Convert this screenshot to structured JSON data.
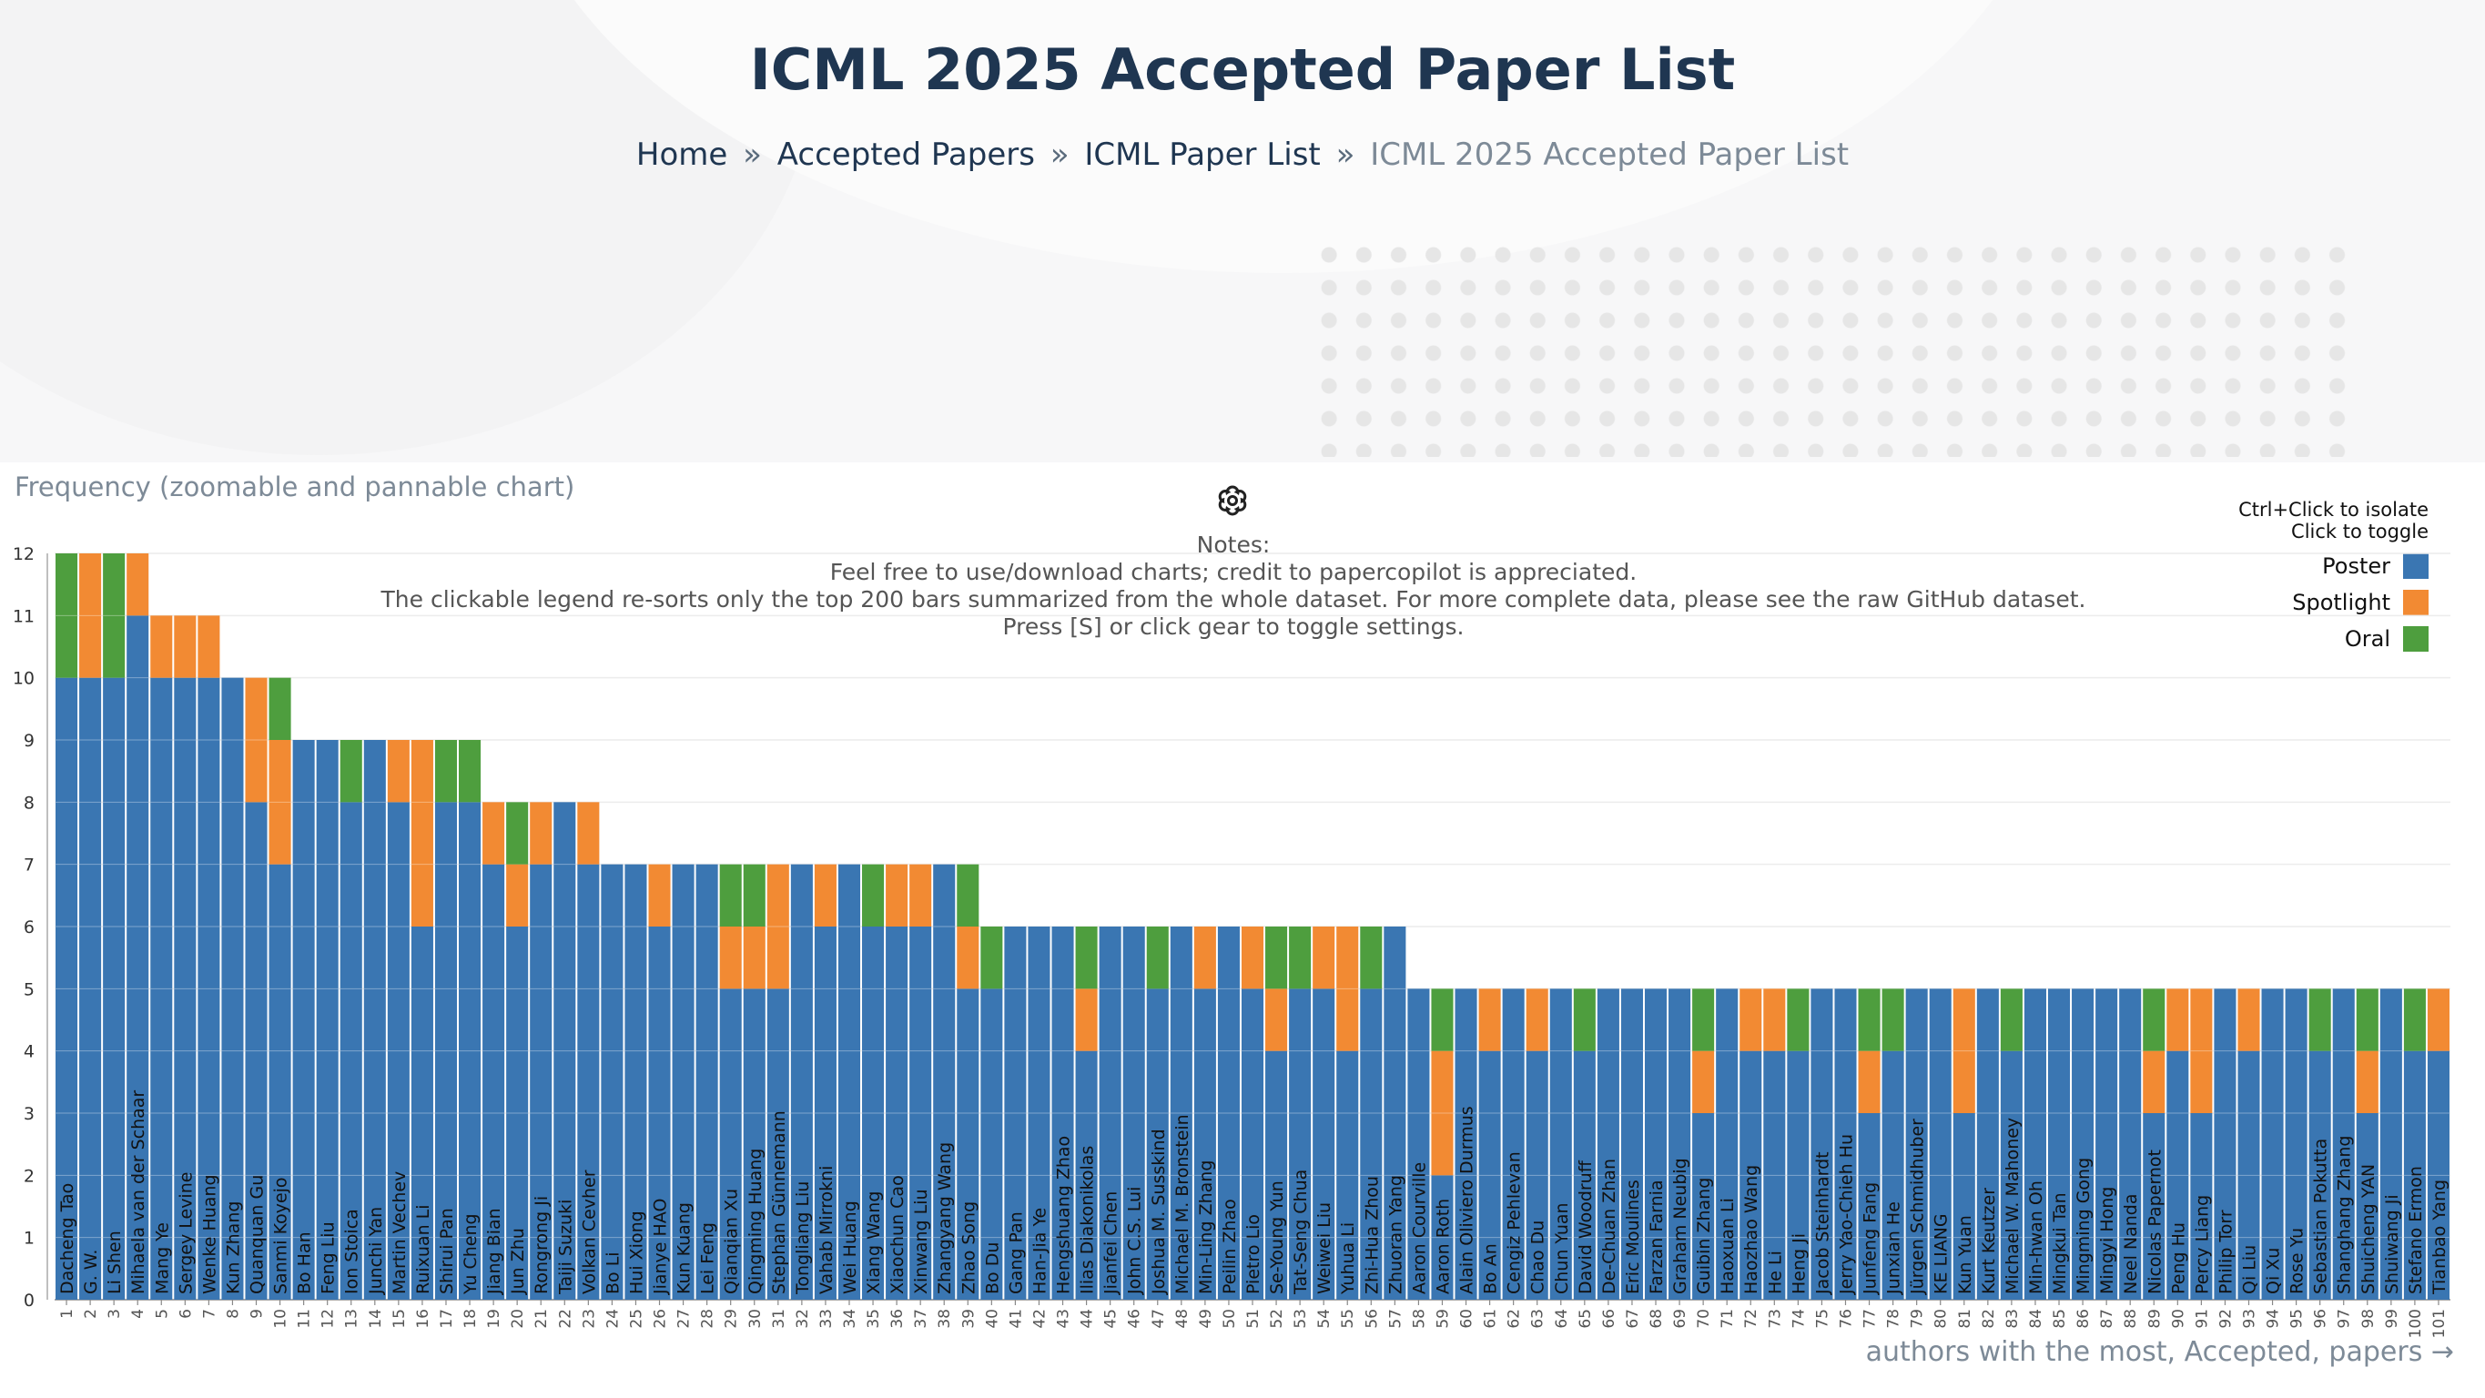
{
  "page": {
    "title": "ICML 2025 Accepted Paper List",
    "breadcrumb": [
      "Home",
      "Accepted Papers",
      "ICML Paper List"
    ],
    "breadcrumb_separator": "»",
    "breadcrumb_current": "ICML 2025 Accepted Paper List",
    "chart_caption": "Frequency (zoomable and pannable chart)",
    "settings_icon": "gear-icon",
    "notes": [
      "Notes:",
      "Feel free to use/download charts; credit to papercopilot is appreciated.",
      "The clickable legend re-sorts only the top 200 bars summarized from the whole dataset. For more complete data, please see the raw GitHub dataset.",
      "Press [S] or click gear to toggle settings."
    ],
    "legend_hint": [
      "Ctrl+Click to isolate",
      "Click to toggle"
    ],
    "x_axis_label": "authors with the most, Accepted, papers →"
  },
  "chart_data": {
    "type": "bar",
    "stacked": true,
    "ylim": [
      0,
      12
    ],
    "yticks": [
      0,
      1,
      2,
      3,
      4,
      5,
      6,
      7,
      8,
      9,
      10,
      11,
      12
    ],
    "ylabel": "Frequency",
    "grid": true,
    "legend_position": "top-right",
    "series": [
      {
        "name": "Poster",
        "color": "#3a76b2"
      },
      {
        "name": "Spotlight",
        "color": "#f28a33"
      },
      {
        "name": "Oral",
        "color": "#4e9e3e"
      }
    ],
    "bars": [
      {
        "rank": "1",
        "name": "Dacheng Tao",
        "poster": 10,
        "spotlight": 0,
        "oral": 2
      },
      {
        "rank": "2",
        "name": "G. W.",
        "poster": 10,
        "spotlight": 2,
        "oral": 0
      },
      {
        "rank": "3",
        "name": "Li Shen",
        "poster": 10,
        "spotlight": 0,
        "oral": 2
      },
      {
        "rank": "4",
        "name": "Mihaela van der Schaar",
        "poster": 11,
        "spotlight": 1,
        "oral": 0
      },
      {
        "rank": "5",
        "name": "Mang Ye",
        "poster": 10,
        "spotlight": 1,
        "oral": 0
      },
      {
        "rank": "6",
        "name": "Sergey Levine",
        "poster": 10,
        "spotlight": 1,
        "oral": 0
      },
      {
        "rank": "7",
        "name": "Wenke Huang",
        "poster": 10,
        "spotlight": 1,
        "oral": 0
      },
      {
        "rank": "8",
        "name": "Kun Zhang",
        "poster": 10,
        "spotlight": 0,
        "oral": 0
      },
      {
        "rank": "9",
        "name": "Quanquan Gu",
        "poster": 8,
        "spotlight": 2,
        "oral": 0
      },
      {
        "rank": "10",
        "name": "Sanmi Koyejo",
        "poster": 7,
        "spotlight": 2,
        "oral": 1
      },
      {
        "rank": "11",
        "name": "Bo Han",
        "poster": 9,
        "spotlight": 0,
        "oral": 0
      },
      {
        "rank": "12",
        "name": "Feng Liu",
        "poster": 9,
        "spotlight": 0,
        "oral": 0
      },
      {
        "rank": "13",
        "name": "Ion Stoica",
        "poster": 8,
        "spotlight": 0,
        "oral": 1
      },
      {
        "rank": "14",
        "name": "Junchi Yan",
        "poster": 9,
        "spotlight": 0,
        "oral": 0
      },
      {
        "rank": "15",
        "name": "Martin Vechev",
        "poster": 8,
        "spotlight": 1,
        "oral": 0
      },
      {
        "rank": "16",
        "name": "Ruixuan Li",
        "poster": 6,
        "spotlight": 3,
        "oral": 0
      },
      {
        "rank": "17",
        "name": "Shirui Pan",
        "poster": 8,
        "spotlight": 0,
        "oral": 1
      },
      {
        "rank": "18",
        "name": "Yu Cheng",
        "poster": 8,
        "spotlight": 0,
        "oral": 1
      },
      {
        "rank": "19",
        "name": "Jiang Bian",
        "poster": 7,
        "spotlight": 1,
        "oral": 0
      },
      {
        "rank": "20",
        "name": "Jun Zhu",
        "poster": 6,
        "spotlight": 1,
        "oral": 1
      },
      {
        "rank": "21",
        "name": "Rongrong Ji",
        "poster": 7,
        "spotlight": 1,
        "oral": 0
      },
      {
        "rank": "22",
        "name": "Taiji Suzuki",
        "poster": 8,
        "spotlight": 0,
        "oral": 0
      },
      {
        "rank": "23",
        "name": "Volkan Cevher",
        "poster": 7,
        "spotlight": 1,
        "oral": 0
      },
      {
        "rank": "24",
        "name": "Bo Li",
        "poster": 7,
        "spotlight": 0,
        "oral": 0
      },
      {
        "rank": "25",
        "name": "Hui Xiong",
        "poster": 7,
        "spotlight": 0,
        "oral": 0
      },
      {
        "rank": "26",
        "name": "Jianye HAO",
        "poster": 6,
        "spotlight": 1,
        "oral": 0
      },
      {
        "rank": "27",
        "name": "Kun Kuang",
        "poster": 7,
        "spotlight": 0,
        "oral": 0
      },
      {
        "rank": "28",
        "name": "Lei Feng",
        "poster": 7,
        "spotlight": 0,
        "oral": 0
      },
      {
        "rank": "29",
        "name": "Qianqian Xu",
        "poster": 5,
        "spotlight": 1,
        "oral": 1
      },
      {
        "rank": "30",
        "name": "Qingming Huang",
        "poster": 5,
        "spotlight": 1,
        "oral": 1
      },
      {
        "rank": "31",
        "name": "Stephan Günnemann",
        "poster": 5,
        "spotlight": 2,
        "oral": 0
      },
      {
        "rank": "32",
        "name": "Tongliang Liu",
        "poster": 7,
        "spotlight": 0,
        "oral": 0
      },
      {
        "rank": "33",
        "name": "Vahab Mirrokni",
        "poster": 6,
        "spotlight": 1,
        "oral": 0
      },
      {
        "rank": "34",
        "name": "Wei Huang",
        "poster": 7,
        "spotlight": 0,
        "oral": 0
      },
      {
        "rank": "35",
        "name": "Xiang Wang",
        "poster": 6,
        "spotlight": 0,
        "oral": 1
      },
      {
        "rank": "36",
        "name": "Xiaochun Cao",
        "poster": 6,
        "spotlight": 1,
        "oral": 0
      },
      {
        "rank": "37",
        "name": "Xinwang Liu",
        "poster": 6,
        "spotlight": 1,
        "oral": 0
      },
      {
        "rank": "38",
        "name": "Zhangyang Wang",
        "poster": 7,
        "spotlight": 0,
        "oral": 0
      },
      {
        "rank": "39",
        "name": "Zhao Song",
        "poster": 5,
        "spotlight": 1,
        "oral": 1
      },
      {
        "rank": "40",
        "name": "Bo Du",
        "poster": 5,
        "spotlight": 0,
        "oral": 1
      },
      {
        "rank": "41",
        "name": "Gang Pan",
        "poster": 6,
        "spotlight": 0,
        "oral": 0
      },
      {
        "rank": "42",
        "name": "Han-Jia Ye",
        "poster": 6,
        "spotlight": 0,
        "oral": 0
      },
      {
        "rank": "43",
        "name": "Hengshuang Zhao",
        "poster": 6,
        "spotlight": 0,
        "oral": 0
      },
      {
        "rank": "44",
        "name": "Ilias Diakonikolas",
        "poster": 4,
        "spotlight": 1,
        "oral": 1
      },
      {
        "rank": "45",
        "name": "Jianfei Chen",
        "poster": 6,
        "spotlight": 0,
        "oral": 0
      },
      {
        "rank": "46",
        "name": "John C.S. Lui",
        "poster": 6,
        "spotlight": 0,
        "oral": 0
      },
      {
        "rank": "47",
        "name": "Joshua M. Susskind",
        "poster": 5,
        "spotlight": 0,
        "oral": 1
      },
      {
        "rank": "48",
        "name": "Michael M. Bronstein",
        "poster": 6,
        "spotlight": 0,
        "oral": 0
      },
      {
        "rank": "49",
        "name": "Min-Ling Zhang",
        "poster": 5,
        "spotlight": 1,
        "oral": 0
      },
      {
        "rank": "50",
        "name": "Peilin Zhao",
        "poster": 6,
        "spotlight": 0,
        "oral": 0
      },
      {
        "rank": "51",
        "name": "Pietro Lio",
        "poster": 5,
        "spotlight": 1,
        "oral": 0
      },
      {
        "rank": "52",
        "name": "Se-Young Yun",
        "poster": 4,
        "spotlight": 1,
        "oral": 1
      },
      {
        "rank": "53",
        "name": "Tat-Seng Chua",
        "poster": 5,
        "spotlight": 0,
        "oral": 1
      },
      {
        "rank": "54",
        "name": "Weiwei Liu",
        "poster": 5,
        "spotlight": 1,
        "oral": 0
      },
      {
        "rank": "55",
        "name": "Yuhua Li",
        "poster": 4,
        "spotlight": 2,
        "oral": 0
      },
      {
        "rank": "56",
        "name": "Zhi-Hua Zhou",
        "poster": 5,
        "spotlight": 0,
        "oral": 1
      },
      {
        "rank": "57",
        "name": "Zhuoran Yang",
        "poster": 6,
        "spotlight": 0,
        "oral": 0
      },
      {
        "rank": "58",
        "name": "Aaron Courville",
        "poster": 5,
        "spotlight": 0,
        "oral": 0
      },
      {
        "rank": "59",
        "name": "Aaron Roth",
        "poster": 2,
        "spotlight": 2,
        "oral": 1
      },
      {
        "rank": "60",
        "name": "Alain Oliviero Durmus",
        "poster": 5,
        "spotlight": 0,
        "oral": 0
      },
      {
        "rank": "61",
        "name": "Bo An",
        "poster": 4,
        "spotlight": 1,
        "oral": 0
      },
      {
        "rank": "62",
        "name": "Cengiz Pehlevan",
        "poster": 5,
        "spotlight": 0,
        "oral": 0
      },
      {
        "rank": "63",
        "name": "Chao Du",
        "poster": 4,
        "spotlight": 1,
        "oral": 0
      },
      {
        "rank": "64",
        "name": "Chun Yuan",
        "poster": 5,
        "spotlight": 0,
        "oral": 0
      },
      {
        "rank": "65",
        "name": "David Woodruff",
        "poster": 4,
        "spotlight": 0,
        "oral": 1
      },
      {
        "rank": "66",
        "name": "De-Chuan Zhan",
        "poster": 5,
        "spotlight": 0,
        "oral": 0
      },
      {
        "rank": "67",
        "name": "Eric Moulines",
        "poster": 5,
        "spotlight": 0,
        "oral": 0
      },
      {
        "rank": "68",
        "name": "Farzan Farnia",
        "poster": 5,
        "spotlight": 0,
        "oral": 0
      },
      {
        "rank": "69",
        "name": "Graham Neubig",
        "poster": 5,
        "spotlight": 0,
        "oral": 0
      },
      {
        "rank": "70",
        "name": "Guibin Zhang",
        "poster": 3,
        "spotlight": 1,
        "oral": 1
      },
      {
        "rank": "71",
        "name": "Haoxuan Li",
        "poster": 5,
        "spotlight": 0,
        "oral": 0
      },
      {
        "rank": "72",
        "name": "Haozhao Wang",
        "poster": 4,
        "spotlight": 1,
        "oral": 0
      },
      {
        "rank": "73",
        "name": "He Li",
        "poster": 4,
        "spotlight": 1,
        "oral": 0
      },
      {
        "rank": "74",
        "name": "Heng Ji",
        "poster": 4,
        "spotlight": 0,
        "oral": 1
      },
      {
        "rank": "75",
        "name": "Jacob Steinhardt",
        "poster": 5,
        "spotlight": 0,
        "oral": 0
      },
      {
        "rank": "76",
        "name": "Jerry Yao-Chieh Hu",
        "poster": 5,
        "spotlight": 0,
        "oral": 0
      },
      {
        "rank": "77",
        "name": "Junfeng Fang",
        "poster": 3,
        "spotlight": 1,
        "oral": 1
      },
      {
        "rank": "78",
        "name": "Junxian He",
        "poster": 4,
        "spotlight": 0,
        "oral": 1
      },
      {
        "rank": "79",
        "name": "Jürgen Schmidhuber",
        "poster": 5,
        "spotlight": 0,
        "oral": 0
      },
      {
        "rank": "80",
        "name": "KE LIANG",
        "poster": 5,
        "spotlight": 0,
        "oral": 0
      },
      {
        "rank": "81",
        "name": "Kun Yuan",
        "poster": 3,
        "spotlight": 2,
        "oral": 0
      },
      {
        "rank": "82",
        "name": "Kurt Keutzer",
        "poster": 5,
        "spotlight": 0,
        "oral": 0
      },
      {
        "rank": "83",
        "name": "Michael W. Mahoney",
        "poster": 4,
        "spotlight": 0,
        "oral": 1
      },
      {
        "rank": "84",
        "name": "Min-hwan Oh",
        "poster": 5,
        "spotlight": 0,
        "oral": 0
      },
      {
        "rank": "85",
        "name": "Mingkui Tan",
        "poster": 5,
        "spotlight": 0,
        "oral": 0
      },
      {
        "rank": "86",
        "name": "Mingming Gong",
        "poster": 5,
        "spotlight": 0,
        "oral": 0
      },
      {
        "rank": "87",
        "name": "Mingyi Hong",
        "poster": 5,
        "spotlight": 0,
        "oral": 0
      },
      {
        "rank": "88",
        "name": "Neel Nanda",
        "poster": 5,
        "spotlight": 0,
        "oral": 0
      },
      {
        "rank": "89",
        "name": "Nicolas Papernot",
        "poster": 3,
        "spotlight": 1,
        "oral": 1
      },
      {
        "rank": "90",
        "name": "Peng Hu",
        "poster": 4,
        "spotlight": 1,
        "oral": 0
      },
      {
        "rank": "91",
        "name": "Percy Liang",
        "poster": 3,
        "spotlight": 2,
        "oral": 0
      },
      {
        "rank": "92",
        "name": "Philip Torr",
        "poster": 5,
        "spotlight": 0,
        "oral": 0
      },
      {
        "rank": "93",
        "name": "Qi Liu",
        "poster": 4,
        "spotlight": 1,
        "oral": 0
      },
      {
        "rank": "94",
        "name": "Qi Xu",
        "poster": 5,
        "spotlight": 0,
        "oral": 0
      },
      {
        "rank": "95",
        "name": "Rose Yu",
        "poster": 5,
        "spotlight": 0,
        "oral": 0
      },
      {
        "rank": "96",
        "name": "Sebastian Pokutta",
        "poster": 4,
        "spotlight": 0,
        "oral": 1
      },
      {
        "rank": "97",
        "name": "Shanghang Zhang",
        "poster": 5,
        "spotlight": 0,
        "oral": 0
      },
      {
        "rank": "98",
        "name": "Shuicheng YAN",
        "poster": 3,
        "spotlight": 1,
        "oral": 1
      },
      {
        "rank": "99",
        "name": "Shuiwang Ji",
        "poster": 5,
        "spotlight": 0,
        "oral": 0
      },
      {
        "rank": "100",
        "name": "Stefano Ermon",
        "poster": 4,
        "spotlight": 0,
        "oral": 1
      },
      {
        "rank": "101",
        "name": "Tianbao Yang",
        "poster": 4,
        "spotlight": 1,
        "oral": 0
      }
    ]
  }
}
